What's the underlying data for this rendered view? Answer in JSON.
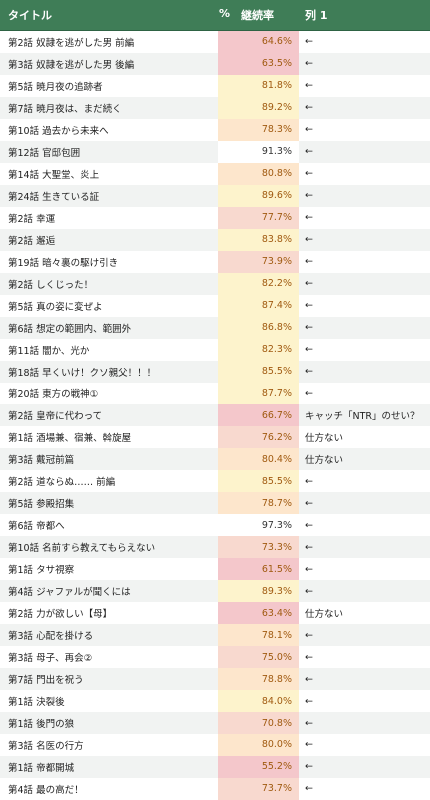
{
  "header": {
    "title": "タイトル",
    "pct": "%",
    "rate": "継続率",
    "col": "列 1"
  },
  "colors": {
    "header_bg": "#3f7d57",
    "very_low": "#f4c7cb",
    "low": "#f8d9cf",
    "mid": "#fde6cc",
    "high": "#fdf3cc",
    "top": "#ffffff"
  },
  "rows": [
    {
      "title": "第2話 奴隷を逃がした男 前編",
      "rate": "64.6%",
      "note": "←"
    },
    {
      "title": "第3話 奴隷を逃がした男 後編",
      "rate": "63.5%",
      "note": "←"
    },
    {
      "title": "第5話 暁月夜の追跡者",
      "rate": "81.8%",
      "note": "←"
    },
    {
      "title": "第7話 暁月夜は、まだ続く",
      "rate": "89.2%",
      "note": "←"
    },
    {
      "title": "第10話 過去から未来へ",
      "rate": "78.3%",
      "note": "←"
    },
    {
      "title": "第12話 官邸包囲",
      "rate": "91.3%",
      "note": "←"
    },
    {
      "title": "第14話 大聖堂、炎上",
      "rate": "80.8%",
      "note": "←"
    },
    {
      "title": "第24話 生きている証",
      "rate": "89.6%",
      "note": "←"
    },
    {
      "title": "第2話 幸運",
      "rate": "77.7%",
      "note": "←"
    },
    {
      "title": "第2話 邂逅",
      "rate": "83.8%",
      "note": "←"
    },
    {
      "title": "第19話 暗々裏の駆け引き",
      "rate": "73.9%",
      "note": "←"
    },
    {
      "title": "第2話 しくじった！",
      "rate": "82.2%",
      "note": "←"
    },
    {
      "title": "第5話 真の姿に変ぜよ",
      "rate": "87.4%",
      "note": "←"
    },
    {
      "title": "第6話 想定の範囲内、範囲外",
      "rate": "86.8%",
      "note": "←"
    },
    {
      "title": "第11話 闇か、光か",
      "rate": "82.3%",
      "note": "←"
    },
    {
      "title": "第18話 早くいけ！クソ親父！！！",
      "rate": "85.5%",
      "note": "←"
    },
    {
      "title": "第20話 東方の戦神①",
      "rate": "87.7%",
      "note": "←"
    },
    {
      "title": "第2話 皇帝に代わって",
      "rate": "66.7%",
      "note": "キャッチ「NTR」のせい？"
    },
    {
      "title": "第1話 酒場兼、宿兼、斡旋屋",
      "rate": "76.2%",
      "note": "仕方ない"
    },
    {
      "title": "第3話 戴冠前篇",
      "rate": "80.4%",
      "note": "仕方ない"
    },
    {
      "title": "第2話 道ならぬ…… 前編",
      "rate": "85.5%",
      "note": "←"
    },
    {
      "title": "第5話 参殿招集",
      "rate": "78.7%",
      "note": "←"
    },
    {
      "title": "第6話 帝都へ",
      "rate": "97.3%",
      "note": "←"
    },
    {
      "title": "第10話 名前すら教えてもらえない",
      "rate": "73.3%",
      "note": "←"
    },
    {
      "title": "第1話 タサ視察",
      "rate": "61.5%",
      "note": "←"
    },
    {
      "title": "第4話 ジャファルが聞くには",
      "rate": "89.3%",
      "note": "←"
    },
    {
      "title": "第2話 力が欲しい【母】",
      "rate": "63.4%",
      "note": "仕方ない"
    },
    {
      "title": "第3話 心配を掛ける",
      "rate": "78.1%",
      "note": "←"
    },
    {
      "title": "第3話 母子、再会②",
      "rate": "75.0%",
      "note": "←"
    },
    {
      "title": "第7話 門出を祝う",
      "rate": "78.8%",
      "note": "←"
    },
    {
      "title": "第1話 決裂後",
      "rate": "84.0%",
      "note": "←"
    },
    {
      "title": "第1話 後門の狼",
      "rate": "70.8%",
      "note": "←"
    },
    {
      "title": "第3話 名医の行方",
      "rate": "80.0%",
      "note": "←"
    },
    {
      "title": "第1話 帝都開城",
      "rate": "55.2%",
      "note": "←"
    },
    {
      "title": "第4話 最の高だ！",
      "rate": "73.7%",
      "note": "←"
    }
  ]
}
